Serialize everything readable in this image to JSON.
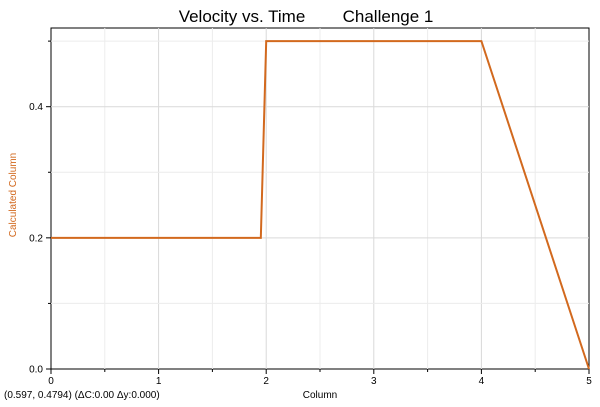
{
  "chart_data": {
    "type": "line",
    "title": "Velocity vs. Time",
    "subtitle": "Challenge 1",
    "xlabel": "Column",
    "ylabel": "Calculated Column",
    "xlim": [
      0,
      5
    ],
    "ylim": [
      0,
      0.52
    ],
    "x_ticks": [
      "0",
      "1",
      "2",
      "3",
      "4",
      "5"
    ],
    "y_ticks": [
      "0.0",
      "0.2",
      "0.4"
    ],
    "y_tick_values": [
      0.0,
      0.2,
      0.4
    ],
    "x_tick_values": [
      0,
      1,
      2,
      3,
      4,
      5
    ],
    "grid": true,
    "series": [
      {
        "color": "#d2691e",
        "x": [
          0,
          1.95,
          2.0,
          4.0,
          5.0
        ],
        "y": [
          0.2,
          0.2,
          0.5,
          0.5,
          0.0
        ]
      }
    ],
    "ylabel_color": "#d2691e"
  },
  "readout": "(0.597, 0.4794) (ΔC:0.00 Δy:0.000)"
}
